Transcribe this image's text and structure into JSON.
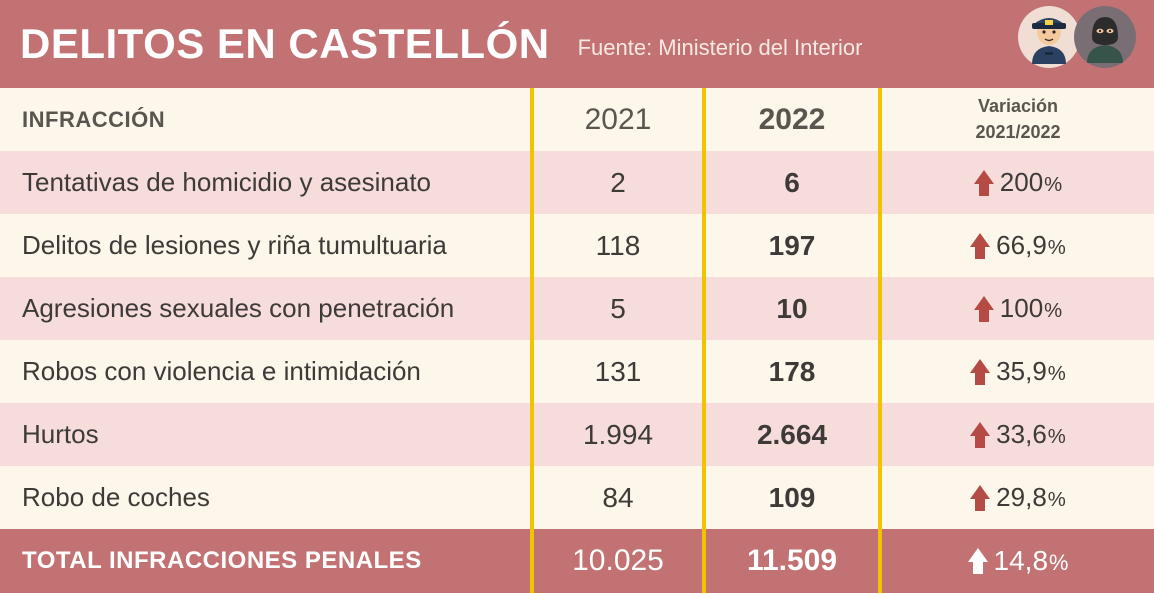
{
  "colors": {
    "header_bg": "#c27272",
    "header_text": "#ffffff",
    "source_text": "#f6e9e3",
    "head_row_bg": "#fdf6eb",
    "head_text": "#5b5550",
    "row_odd_bg": "#f6dddb",
    "row_even_bg": "#fdf6eb",
    "cell_text": "#3e3a37",
    "border_yellow": "#f2c400",
    "total_bg": "#c27272",
    "total_text": "#ffffff",
    "arrow_red": "#b54b45",
    "arrow_white": "#ffffff",
    "police_bg": "#f0ddd4",
    "thief_bg": "#7a6e75"
  },
  "header": {
    "title": "DELITOS EN CASTELLÓN",
    "source": "Fuente: Ministerio del Interior"
  },
  "table": {
    "columns": {
      "name": "INFRACCIÓN",
      "y2021": "2021",
      "y2022": "2022",
      "var_line1": "Variación",
      "var_line2": "2021/2022"
    },
    "rows": [
      {
        "name": "Tentativas de homicidio y asesinato",
        "y2021": "2",
        "y2022": "6",
        "pct": "200",
        "dir": "up"
      },
      {
        "name": "Delitos de lesiones y riña tumultuaria",
        "y2021": "118",
        "y2022": "197",
        "pct": "66,9",
        "dir": "up"
      },
      {
        "name": "Agresiones sexuales con penetración",
        "y2021": "5",
        "y2022": "10",
        "pct": "100",
        "dir": "up"
      },
      {
        "name": "Robos con violencia e intimidación",
        "y2021": "131",
        "y2022": "178",
        "pct": "35,9",
        "dir": "up"
      },
      {
        "name": "Hurtos",
        "y2021": "1.994",
        "y2022": "2.664",
        "pct": "33,6",
        "dir": "up"
      },
      {
        "name": "Robo de coches",
        "y2021": "84",
        "y2022": "109",
        "pct": "29,8",
        "dir": "up"
      }
    ],
    "total": {
      "name": "TOTAL INFRACCIONES PENALES",
      "y2021": "10.025",
      "y2022": "11.509",
      "pct": "14,8",
      "dir": "up"
    }
  }
}
